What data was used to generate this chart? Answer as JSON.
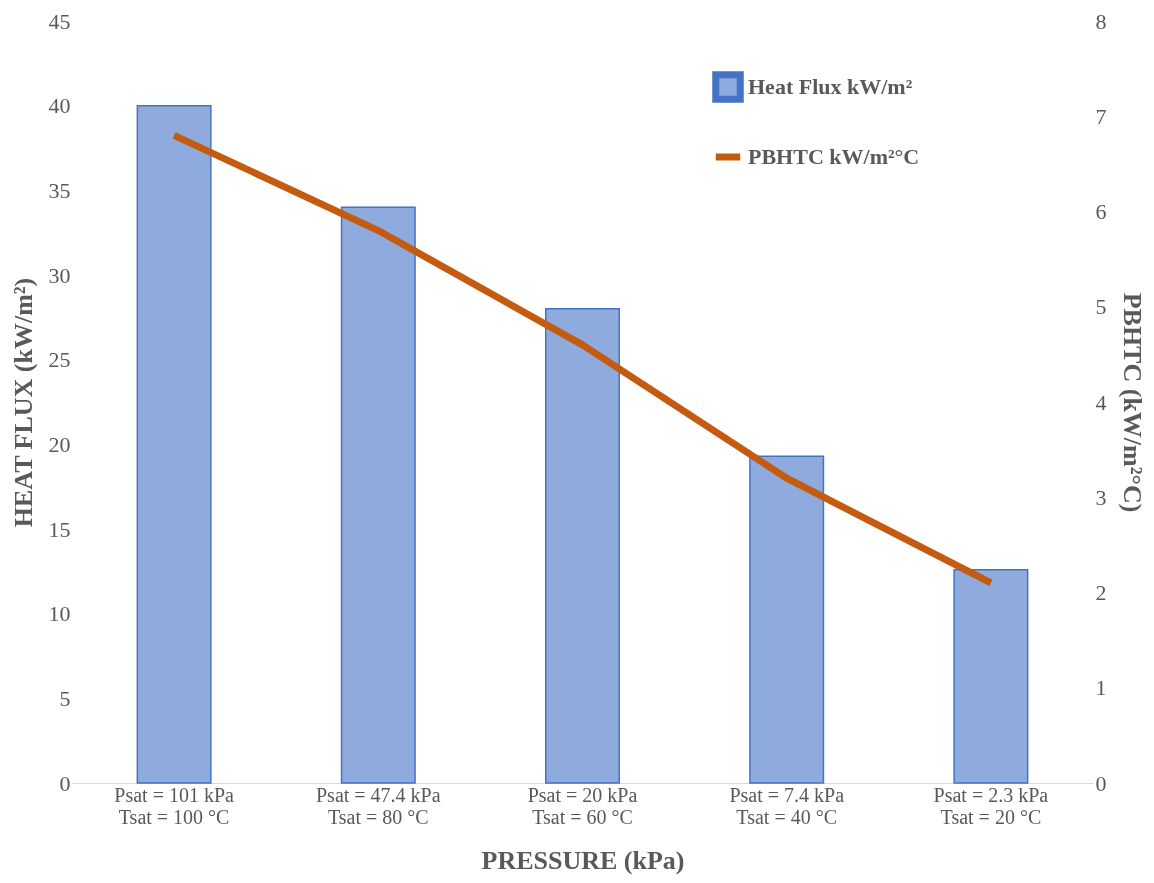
{
  "chart_data": {
    "type": "bar",
    "xlabel": "PRESSURE (kPa)",
    "ylabel": "HEAT FLUX (kW/m²)",
    "y2label": "PBHTC (kW/m²°C)",
    "categories": [
      "Psat = 101 kPa\nTsat = 100 °C",
      "Psat = 47.4 kPa\nTsat = 80 °C",
      "Psat = 20 kPa\nTsat = 60 °C",
      "Psat = 7.4 kPa\nTsat = 40 °C",
      "Psat = 2.3 kPa\nTsat = 20 °C"
    ],
    "series": [
      {
        "name": "Heat Flux kW/m²",
        "color": "#8faadc",
        "values": [
          40,
          34,
          28,
          19.3,
          12.6
        ]
      },
      {
        "name": "PBHTC kW/m²°C",
        "type": "line",
        "axis": "y2",
        "color": "#c55a11",
        "values": [
          6.8,
          5.8,
          4.6,
          3.2,
          2.1
        ]
      }
    ],
    "ylim": [
      0,
      45
    ],
    "yticks": [
      0,
      5,
      10,
      15,
      20,
      25,
      30,
      35,
      40,
      45
    ],
    "y2lim": [
      0,
      8
    ],
    "y2ticks": [
      0,
      1,
      2,
      3,
      4,
      5,
      6,
      7,
      8
    ],
    "grid": false,
    "legend": "top right",
    "marker": "none",
    "line_style": "solid"
  }
}
